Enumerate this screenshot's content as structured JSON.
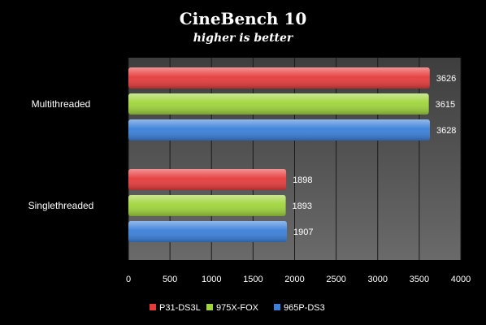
{
  "chart_data": {
    "type": "bar",
    "orientation": "horizontal",
    "title": "CineBench 10",
    "subtitle": "higher is better",
    "xlabel": "",
    "ylabel": "",
    "categories": [
      "Multithreaded",
      "Singlethreaded"
    ],
    "series": [
      {
        "name": "P31-DS3L",
        "color": "#e63b3b",
        "values": [
          3626,
          1898
        ]
      },
      {
        "name": "975X-FOX",
        "color": "#9fd43a",
        "values": [
          3615,
          1893
        ]
      },
      {
        "name": "965P-DS3",
        "color": "#3a7fd9",
        "values": [
          3628,
          1907
        ]
      }
    ],
    "xlim": [
      0,
      4000
    ],
    "xticks": [
      0,
      500,
      1000,
      1500,
      2000,
      2500,
      3000,
      3500,
      4000
    ],
    "grid": true,
    "legend_position": "bottom",
    "data_labels": true
  }
}
